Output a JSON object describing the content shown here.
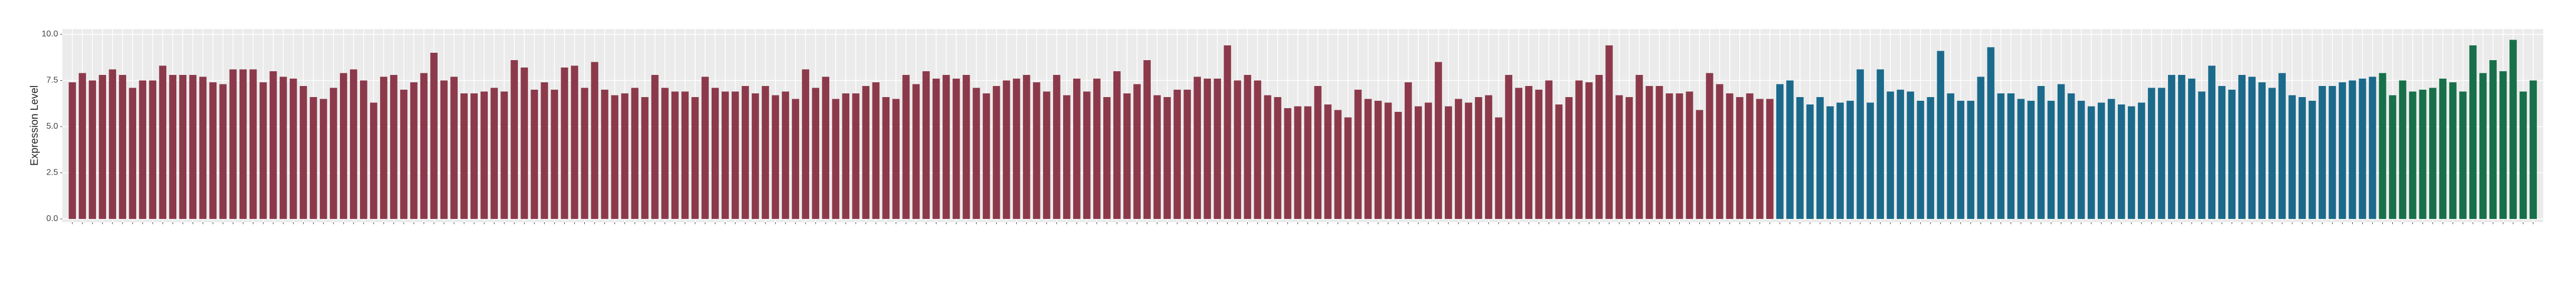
{
  "chart_data": {
    "type": "bar",
    "y_label": "Expression Level",
    "ylim": [
      0,
      10
    ],
    "yticks": [
      {
        "value": 0,
        "label": "0.0"
      },
      2.5,
      {
        "value": 5,
        "label": "5.0"
      },
      7.5,
      {
        "value": 10,
        "label": "10.0"
      }
    ],
    "grid": true,
    "series": [
      {
        "color": "#8c3a4b",
        "values": [
          7.4,
          7.9,
          7.5,
          7.8,
          8.1,
          7.8,
          7.1,
          7.5,
          7.5,
          8.3,
          7.8,
          7.8,
          7.8,
          7.7,
          7.4,
          7.3,
          8.1,
          8.1,
          8.1,
          7.4,
          8.0,
          7.7,
          7.6,
          7.2,
          6.6,
          6.5,
          7.1,
          7.9,
          8.1,
          7.5,
          6.3,
          7.7,
          7.8,
          7.0,
          7.4,
          7.9,
          9.0,
          7.5,
          7.7,
          6.8,
          6.8,
          6.9,
          7.1,
          6.9,
          8.6,
          8.2,
          7.0,
          7.4,
          7.0,
          8.2,
          8.3,
          7.1,
          8.5,
          7.0,
          6.7,
          6.8,
          7.1,
          6.6,
          7.8,
          7.1,
          6.9,
          6.9,
          6.6,
          7.7,
          7.1,
          6.9,
          6.9,
          7.2,
          6.8,
          7.2,
          6.7,
          6.9,
          6.5,
          8.1,
          7.1,
          7.7,
          6.5,
          6.8,
          6.8,
          7.2,
          7.4,
          6.6,
          6.5,
          7.8,
          7.3,
          8.0,
          7.6,
          7.8,
          7.6,
          7.8,
          7.1,
          6.8,
          7.2,
          7.5,
          7.6,
          7.8,
          7.4,
          6.9,
          7.8,
          6.7,
          7.6,
          6.9,
          7.6,
          6.6,
          8.0,
          6.8,
          7.3,
          8.6,
          6.7,
          6.6,
          7.0,
          7.0,
          7.7,
          7.6,
          7.6,
          9.4,
          7.5,
          7.8,
          7.5,
          6.7,
          6.6,
          6.0,
          6.1,
          6.1,
          7.2,
          6.2,
          5.9,
          5.5,
          7.0,
          6.5,
          6.4,
          6.3,
          5.8,
          7.4,
          6.1,
          6.3,
          8.5,
          6.1,
          6.5,
          6.3,
          6.6,
          6.7,
          5.5,
          7.8,
          7.1,
          7.2,
          7.0,
          7.5,
          6.2,
          6.6,
          7.5,
          7.4,
          7.8,
          9.4,
          6.7,
          6.6,
          7.8,
          7.2,
          7.2,
          6.8,
          6.8,
          6.9,
          5.9,
          7.9,
          7.3,
          6.8,
          6.6,
          6.8,
          6.5,
          6.5
        ]
      },
      {
        "color": "#1b6a8c",
        "values": [
          7.3,
          7.5,
          6.6,
          6.2,
          6.6,
          6.1,
          6.3,
          6.4,
          8.1,
          6.3,
          8.1,
          6.9,
          7.0,
          6.9,
          6.4,
          6.6,
          9.1,
          6.8,
          6.4,
          6.4,
          7.7,
          9.3,
          6.8,
          6.8,
          6.5,
          6.4,
          7.2,
          6.4,
          7.3,
          6.8,
          6.4,
          6.1,
          6.3,
          6.5,
          6.2,
          6.1,
          6.3,
          7.1,
          7.1,
          7.8,
          7.8,
          7.6,
          6.9,
          8.3,
          7.2,
          7.0,
          7.8,
          7.7,
          7.4,
          7.1,
          7.9,
          6.7,
          6.6,
          6.4,
          7.2,
          7.2,
          7.4,
          7.5,
          7.6,
          7.7
        ]
      },
      {
        "color": "#17704a",
        "values": [
          7.9,
          6.7,
          7.5,
          6.9,
          7.0,
          7.1,
          7.6,
          7.4,
          6.9,
          9.4,
          7.9,
          8.6,
          8.0,
          9.7,
          6.9,
          7.5
        ]
      }
    ]
  }
}
